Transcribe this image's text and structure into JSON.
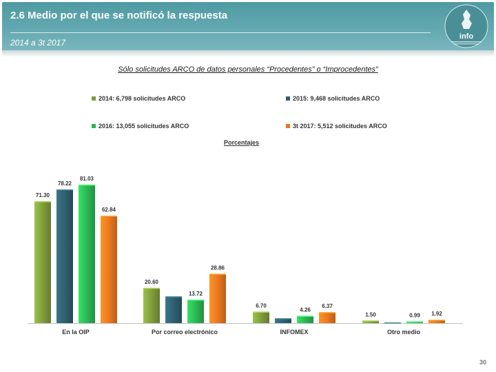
{
  "header": {
    "title": "2.6 Medio por el que se notificó la respuesta",
    "period": "2014 a 3t 2017",
    "logo_text": "info"
  },
  "subtitle": "Sólo solicitudes ARCO de datos personales “Procedentes” o “Improcedentes”",
  "percent_label": "Porcentajes",
  "page_number": "30",
  "colors": {
    "header": "#5fa6ae",
    "s2014": "#7d9a3c",
    "s2015": "#2e5e6e",
    "s2016": "#2cb452",
    "s2017": "#e8761e"
  },
  "chart_data": {
    "type": "bar",
    "categories": [
      "En la OIP",
      "Por correo electrónico",
      "INFOMEX",
      "Otro medio"
    ],
    "series": [
      {
        "name": "2014: 6,798 solicitudes ARCO",
        "values": [
          71.3,
          20.6,
          6.7,
          1.5
        ],
        "labels": [
          "71.30",
          "20.60",
          "6.70",
          "1.50"
        ]
      },
      {
        "name": "2015: 9,468 solicitudes ARCO",
        "values": [
          78.22,
          15.6,
          2.8,
          0.4
        ],
        "labels": [
          "78.22",
          "",
          "",
          ""
        ]
      },
      {
        "name": "2016: 13,055 solicitudes ARCO",
        "values": [
          81.03,
          13.72,
          4.26,
          0.99
        ],
        "labels": [
          "81.03",
          "13.72",
          "4.26",
          "0.99"
        ]
      },
      {
        "name": "3t 2017: 5,512 solicitudes ARCO",
        "values": [
          62.84,
          28.86,
          6.37,
          1.92
        ],
        "labels": [
          "62.84",
          "28.86",
          "6.37",
          "1.92"
        ]
      }
    ],
    "ylim": [
      0,
      100
    ]
  }
}
